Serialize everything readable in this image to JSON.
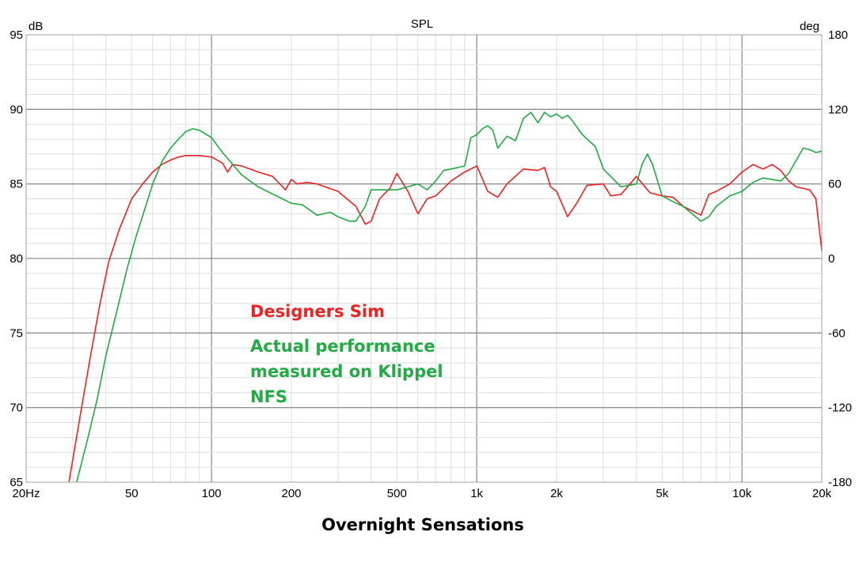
{
  "chart_data": {
    "type": "line",
    "title": "SPL",
    "y_unit": "dB",
    "y2_unit": "deg",
    "xscale": "log",
    "xlim": [
      20,
      20000
    ],
    "ylim": [
      65,
      95
    ],
    "y2lim": [
      -180,
      180
    ],
    "grid": true,
    "x_ticks": [
      "20Hz",
      "50",
      "100",
      "200",
      "500",
      "1k",
      "2k",
      "5k",
      "10k",
      "20k"
    ],
    "y_ticks": [
      "95",
      "90",
      "85",
      "80",
      "75",
      "70",
      "65"
    ],
    "y2_ticks": [
      "180",
      "120",
      "60",
      "0",
      "-60",
      "-120",
      "-180"
    ],
    "series": [
      {
        "color": "#ee3333",
        "x": [
          29,
          32,
          35,
          38,
          41,
          45,
          50,
          55,
          60,
          65,
          70,
          75,
          80,
          90,
          100,
          110,
          115,
          120,
          130,
          150,
          170,
          190,
          200,
          210,
          230,
          250,
          300,
          350,
          380,
          400,
          430,
          470,
          500,
          550,
          600,
          650,
          700,
          800,
          900,
          1000,
          1100,
          1200,
          1300,
          1500,
          1700,
          1800,
          1900,
          2000,
          2200,
          2400,
          2600,
          3000,
          3200,
          3500,
          4000,
          4500,
          5000,
          5500,
          6000,
          7000,
          7500,
          8000,
          9000,
          10000,
          11000,
          12000,
          13000,
          14000,
          15000,
          16000,
          18000,
          19000,
          20000
        ],
        "y": [
          65,
          69.5,
          73.5,
          77,
          79.8,
          82,
          84,
          85,
          85.8,
          86.3,
          86.6,
          86.8,
          86.9,
          86.9,
          86.8,
          86.4,
          85.8,
          86.3,
          86.2,
          85.8,
          85.5,
          84.6,
          85.3,
          85,
          85.1,
          85,
          84.5,
          83.5,
          82.3,
          82.5,
          84,
          84.7,
          85.7,
          84.5,
          83,
          84,
          84.2,
          85.2,
          85.8,
          86.2,
          84.5,
          84.1,
          85,
          86,
          85.9,
          86.1,
          84.8,
          84.5,
          82.8,
          83.8,
          84.9,
          85,
          84.2,
          84.3,
          85.5,
          84.4,
          84.2,
          84.1,
          83.5,
          82.9,
          84.3,
          84.5,
          85,
          85.8,
          86.3,
          86,
          86.3,
          85.9,
          85.2,
          84.8,
          84.6,
          84,
          80.5
        ]
      },
      {
        "color": "#33aa33",
        "x": [
          31,
          34,
          37,
          40,
          44,
          48,
          52,
          56,
          60,
          65,
          70,
          75,
          80,
          85,
          90,
          100,
          110,
          130,
          150,
          180,
          200,
          220,
          250,
          280,
          300,
          330,
          350,
          380,
          400,
          450,
          500,
          550,
          600,
          650,
          700,
          750,
          800,
          900,
          950,
          1000,
          1050,
          1100,
          1150,
          1200,
          1300,
          1400,
          1500,
          1600,
          1700,
          1800,
          1900,
          2000,
          2100,
          2200,
          2300,
          2500,
          2800,
          3000,
          3500,
          4000,
          4200,
          4400,
          4600,
          5000,
          5500,
          6000,
          7000,
          7500,
          8000,
          9000,
          10000,
          11000,
          12000,
          14000,
          15000,
          17000,
          18000,
          19000,
          20000
        ],
        "y": [
          65,
          67.8,
          70.5,
          73.5,
          76.5,
          79.3,
          81.5,
          83.3,
          85,
          86.5,
          87.4,
          88,
          88.5,
          88.7,
          88.6,
          88.1,
          87.1,
          85.6,
          84.8,
          84.1,
          83.7,
          83.6,
          82.9,
          83.1,
          82.8,
          82.5,
          82.5,
          83.5,
          84.6,
          84.6,
          84.6,
          84.8,
          85,
          84.6,
          85.2,
          85.9,
          86,
          86.2,
          88.1,
          88.3,
          88.7,
          88.9,
          88.6,
          87.4,
          88.2,
          87.9,
          89.4,
          89.8,
          89.1,
          89.8,
          89.5,
          89.7,
          89.4,
          89.6,
          89.2,
          88.3,
          87.5,
          86,
          84.8,
          85,
          86.3,
          87,
          86.3,
          84.2,
          83.8,
          83.5,
          82.5,
          82.8,
          83.5,
          84.2,
          84.5,
          85.1,
          85.4,
          85.2,
          85.7,
          87.4,
          87.3,
          87.1,
          87.2
        ]
      }
    ],
    "annotations": {
      "red": "Designers Sim",
      "green": "Actual performance\nmeasured on Klippel\nNFS"
    },
    "caption": "Overnight Sensations"
  },
  "colors": {
    "background": "#ffffff",
    "grid_minor": "#dddddd",
    "grid_major": "#909090",
    "frame": "#a0a0a0",
    "red": "#ee2222",
    "green": "#22aa44"
  }
}
